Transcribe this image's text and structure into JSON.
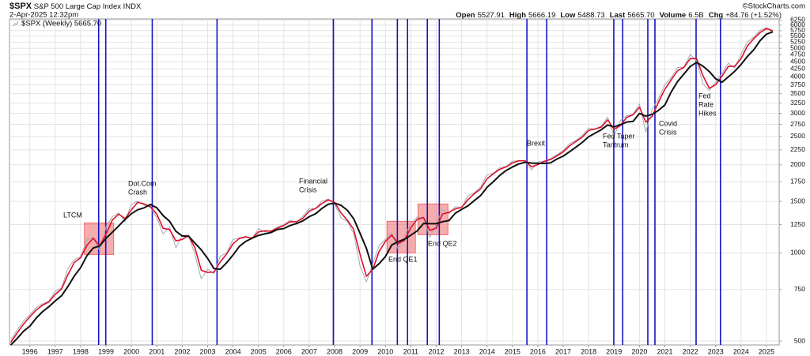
{
  "header": {
    "symbol": "$SPX",
    "name": "S&P 500 Large Cap Index",
    "exchange": "INDX",
    "date": "2-Apr-2025 12:32pm",
    "copyright": "©StockCharts.com",
    "quote": [
      {
        "label": "Open",
        "value": "5527.91"
      },
      {
        "label": "High",
        "value": "5666.19"
      },
      {
        "label": "Low",
        "value": "5488.73"
      },
      {
        "label": "Last",
        "value": "5665.70"
      },
      {
        "label": "Volume",
        "value": "6.5B"
      },
      {
        "label": "Chg",
        "value": "+84.76 (+1.52%)"
      }
    ]
  },
  "chart_data": {
    "type": "line",
    "log_scale": true,
    "grid": true,
    "x": [
      1995.25,
      1995.5,
      1995.75,
      1996,
      1996.25,
      1996.5,
      1996.75,
      1997,
      1997.25,
      1997.5,
      1997.75,
      1998,
      1998.25,
      1998.5,
      1998.75,
      1999,
      1999.25,
      1999.5,
      1999.75,
      2000,
      2000.25,
      2000.5,
      2000.75,
      2001,
      2001.25,
      2001.5,
      2001.75,
      2002,
      2002.25,
      2002.5,
      2002.75,
      2003,
      2003.25,
      2003.5,
      2003.75,
      2004,
      2004.25,
      2004.5,
      2004.75,
      2005,
      2005.25,
      2005.5,
      2005.75,
      2006,
      2006.25,
      2006.5,
      2006.75,
      2007,
      2007.25,
      2007.5,
      2007.75,
      2008,
      2008.25,
      2008.5,
      2008.75,
      2009,
      2009.25,
      2009.5,
      2009.75,
      2010,
      2010.25,
      2010.5,
      2010.75,
      2011,
      2011.25,
      2011.5,
      2011.75,
      2012,
      2012.25,
      2012.5,
      2012.75,
      2013,
      2013.25,
      2013.5,
      2013.75,
      2014,
      2014.25,
      2014.5,
      2014.75,
      2015,
      2015.25,
      2015.5,
      2015.75,
      2016,
      2016.25,
      2016.5,
      2016.75,
      2017,
      2017.25,
      2017.5,
      2017.75,
      2018,
      2018.25,
      2018.5,
      2018.75,
      2019,
      2019.25,
      2019.5,
      2019.75,
      2020,
      2020.25,
      2020.5,
      2020.75,
      2021,
      2021.25,
      2021.5,
      2021.75,
      2022,
      2022.25,
      2022.5,
      2022.75,
      2023,
      2023.25,
      2023.5,
      2023.75,
      2024,
      2024.25,
      2024.5,
      2024.75,
      2025,
      2025.25
    ],
    "series": [
      {
        "name": "$SPX (Weekly) 5665.70",
        "color": "#a3abb8",
        "width": 1,
        "values": [
          505,
          545,
          584,
          615,
          650,
          670,
          685,
          740,
          760,
          885,
          950,
          970,
          1110,
          1130,
          1017,
          1229,
          1330,
          1370,
          1280,
          1469,
          1500,
          1455,
          1430,
          1320,
          1160,
          1225,
          1040,
          1148,
          1147,
          990,
          815,
          880,
          850,
          975,
          1000,
          1112,
          1126,
          1140,
          1115,
          1212,
          1180,
          1191,
          1228,
          1248,
          1295,
          1270,
          1335,
          1418,
          1420,
          1503,
          1527,
          1468,
          1322,
          1280,
          1166,
          903,
          797,
          919,
          1057,
          1115,
          1169,
          1030,
          1141,
          1258,
          1325,
          1320,
          1131,
          1258,
          1408,
          1362,
          1440,
          1426,
          1569,
          1606,
          1681,
          1848,
          1872,
          1960,
          1972,
          2058,
          2067,
          2063,
          1920,
          2044,
          2060,
          2099,
          2168,
          2239,
          2363,
          2423,
          2519,
          2674,
          2640,
          2718,
          2914,
          2507,
          2834,
          2942,
          2977,
          3231,
          2585,
          3100,
          3363,
          3756,
          3973,
          4298,
          4307,
          4766,
          4530,
          3785,
          3586,
          3840,
          4109,
          4450,
          4288,
          4770,
          5254,
          5460,
          5762,
          5882,
          5666
        ]
      },
      {
        "color": "#e0102a",
        "width": 1.6,
        "values": [
          495,
          532,
          571,
          605,
          638,
          663,
          680,
          722,
          753,
          843,
          928,
          963,
          1063,
          1123,
          1055,
          1160,
          1296,
          1357,
          1310,
          1405,
          1490,
          1470,
          1438,
          1357,
          1213,
          1203,
          1100,
          1112,
          1147,
          1042,
          873,
          858,
          860,
          933,
          992,
          1075,
          1121,
          1135,
          1123,
          1180,
          1190,
          1187,
          1216,
          1241,
          1279,
          1278,
          1313,
          1390,
          1419,
          1475,
          1519,
          1488,
          1371,
          1294,
          1204,
          990,
          832,
          878,
          1011,
          1096,
          1151,
          1076,
          1104,
          1219,
          1303,
          1322,
          1194,
          1216,
          1358,
          1377,
          1414,
          1431,
          1521,
          1594,
          1656,
          1792,
          1864,
          1931,
          1968,
          2029,
          2064,
          2064,
          1968,
          2003,
          2055,
          2086,
          2145,
          2215,
          2322,
          2403,
          2487,
          2622,
          2651,
          2692,
          2849,
          2643,
          2725,
          2906,
          2965,
          3146,
          2800,
          2928,
          3275,
          3625,
          3901,
          4190,
          4304,
          4613,
          4609,
          4033,
          3652,
          3755,
          4019,
          4336,
          4342,
          4609,
          5093,
          5391,
          5661,
          5842,
          5738
        ]
      },
      {
        "color": "#111111",
        "width": 2,
        "values": [
          485,
          510,
          540,
          562,
          599,
          630,
          655,
          686,
          714,
          768,
          834,
          891,
          979,
          1040,
          1057,
          1122,
          1177,
          1237,
          1302,
          1362,
          1405,
          1426,
          1464,
          1426,
          1341,
          1284,
          1186,
          1143,
          1140,
          1081,
          1025,
          958,
          884,
          880,
          926,
          984,
          1053,
          1095,
          1123,
          1148,
          1162,
          1175,
          1203,
          1212,
          1241,
          1260,
          1287,
          1330,
          1361,
          1419,
          1467,
          1480,
          1455,
          1399,
          1309,
          1168,
          1037,
          880,
          919,
          972,
          1065,
          1093,
          1114,
          1150,
          1189,
          1261,
          1259,
          1259,
          1279,
          1290,
          1367,
          1409,
          1449,
          1510,
          1571,
          1676,
          1752,
          1840,
          1913,
          1966,
          2014,
          2040,
          2027,
          2024,
          2022,
          2031,
          2093,
          2142,
          2217,
          2298,
          2386,
          2495,
          2564,
          2638,
          2737,
          2695,
          2743,
          2799,
          2815,
          2996,
          2934,
          2973,
          3070,
          3201,
          3548,
          3848,
          4084,
          4336,
          4475,
          4347,
          4167,
          3935,
          3830,
          3996,
          4172,
          4404,
          4691,
          4943,
          5312,
          5590,
          5693
        ]
      }
    ],
    "xlim": [
      1995.2,
      2025.5
    ],
    "xticks": [
      1996,
      1997,
      1998,
      1999,
      2000,
      2001,
      2002,
      2003,
      2004,
      2005,
      2006,
      2007,
      2008,
      2009,
      2010,
      2011,
      2012,
      2013,
      2014,
      2015,
      2016,
      2017,
      2018,
      2019,
      2020,
      2021,
      2022,
      2023,
      2024,
      2025
    ],
    "ylim": [
      485,
      6300
    ],
    "yticks": [
      500,
      750,
      1000,
      1250,
      1500,
      1750,
      2000,
      2250,
      2500,
      2750,
      3000,
      3250,
      3500,
      3750,
      4000,
      4250,
      4500,
      4750,
      5000,
      5250,
      5500,
      5750,
      6000,
      6250
    ],
    "event_lines": {
      "color": "#1414c8",
      "x": [
        1998.71,
        1998.99,
        2000.82,
        2003.37,
        2007.95,
        2009.47,
        2010.47,
        2010.87,
        2011.65,
        2012.12,
        2015.57,
        2016.35,
        2018.99,
        2019.34,
        2020.33,
        2020.61,
        2022.23,
        2023.19
      ]
    },
    "highlight_boxes": {
      "color": "#ee6a6a",
      "boxes": [
        {
          "x": [
            1998.15,
            1999.3
          ],
          "y": [
            988,
            1266
          ]
        },
        {
          "x": [
            2010.06,
            2011.18
          ],
          "y": [
            1000,
            1283
          ]
        },
        {
          "x": [
            2011.28,
            2012.46
          ],
          "y": [
            1154,
            1470
          ]
        }
      ]
    },
    "annotations": [
      {
        "lines": [
          "LTCM"
        ]
      },
      {
        "lines": [
          "Dot.Com",
          "Crash"
        ]
      },
      {
        "lines": [
          "Financial",
          "Crisis"
        ]
      },
      {
        "lines": [
          "End QE1"
        ]
      },
      {
        "lines": [
          "End QE2"
        ]
      },
      {
        "lines": [
          "Brexit"
        ]
      },
      {
        "lines": [
          "Fed Taper",
          "Tantrum"
        ]
      },
      {
        "lines": [
          "Covid",
          "Crisis"
        ]
      },
      {
        "lines": [
          "Fed",
          "Rate",
          "Hikes"
        ]
      }
    ]
  }
}
